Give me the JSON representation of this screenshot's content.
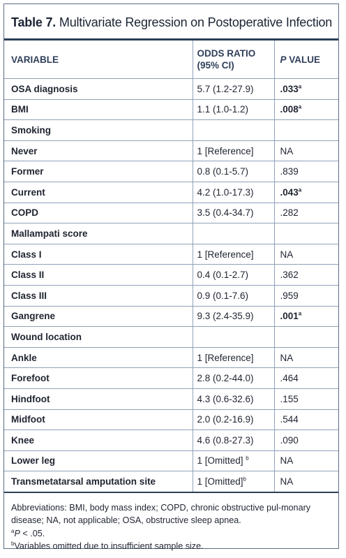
{
  "title": {
    "label": "Table 7.",
    "text": "Multivariate Regression on Postoperative Infection"
  },
  "columns": {
    "variable": "VARIABLE",
    "odds_ratio_1": "ODDS RATIO",
    "odds_ratio_2": "(95% CI)",
    "p_italic": "P",
    "p_rest": " VALUE"
  },
  "rows": [
    {
      "variable": "OSA diagnosis",
      "or": "5.7 (1.2-27.9)",
      "p": ".033",
      "p_sup": "a"
    },
    {
      "variable": "BMI",
      "or": "1.1 (1.0-1.2)",
      "p": ".008",
      "p_sup": "a"
    },
    {
      "variable": "Smoking",
      "or": "",
      "p": "",
      "p_sup": ""
    },
    {
      "variable": "Never",
      "or": "1 [Reference]",
      "p": "NA",
      "p_sup": ""
    },
    {
      "variable": "Former",
      "or": "0.8 (0.1-5.7)",
      "p": ".839",
      "p_sup": ""
    },
    {
      "variable": "Current",
      "or": "4.2 (1.0-17.3)",
      "p": ".043",
      "p_sup": "a"
    },
    {
      "variable": "COPD",
      "or": "3.5 (0.4-34.7)",
      "p": ".282",
      "p_sup": ""
    },
    {
      "variable": "Mallampati score",
      "or": "",
      "p": "",
      "p_sup": ""
    },
    {
      "variable": "Class I",
      "or": "1 [Reference]",
      "p": "NA",
      "p_sup": ""
    },
    {
      "variable": "Class II",
      "or": "0.4 (0.1-2.7)",
      "p": ".362",
      "p_sup": ""
    },
    {
      "variable": "Class III",
      "or": "0.9 (0.1-7.6)",
      "p": ".959",
      "p_sup": ""
    },
    {
      "variable": "Gangrene",
      "or": "9.3 (2.4-35.9)",
      "p": ".001",
      "p_sup": "a"
    },
    {
      "variable": "Wound location",
      "or": "",
      "p": "",
      "p_sup": ""
    },
    {
      "variable": "Ankle",
      "or": "1 [Reference]",
      "p": "NA",
      "p_sup": ""
    },
    {
      "variable": "Forefoot",
      "or": "2.8 (0.2-44.0)",
      "p": ".464",
      "p_sup": ""
    },
    {
      "variable": "Hindfoot",
      "or": "4.3 (0.6-32.6)",
      "p": ".155",
      "p_sup": ""
    },
    {
      "variable": "Midfoot",
      "or": "2.0 (0.2-16.9)",
      "p": ".544",
      "p_sup": ""
    },
    {
      "variable": "Knee",
      "or": "4.6 (0.8-27.3)",
      "p": ".090",
      "p_sup": ""
    },
    {
      "variable": "Lower leg",
      "or": "1 [Omitted] ",
      "or_sup": "b",
      "p": "NA",
      "p_sup": ""
    },
    {
      "variable": "Transmetatarsal amputation site",
      "or": "1 [Omitted]",
      "or_sup": "b",
      "p": "NA",
      "p_sup": ""
    }
  ],
  "footnotes": {
    "abbreviations": "Abbreviations: BMI, body mass index; COPD, chronic obstructive pul-monary disease; NA, not applicable; OSA, obstructive sleep apnea.",
    "a_mark": "a",
    "a_italic": "P",
    "a_text": " < .05.",
    "b_mark": "b",
    "b_text": "Variables omitted due to insufficient sample size."
  },
  "colors": {
    "header_text": "#2f3f5a",
    "rule_dark": "#2d3e57",
    "rule_light": "#8fa1b8"
  }
}
